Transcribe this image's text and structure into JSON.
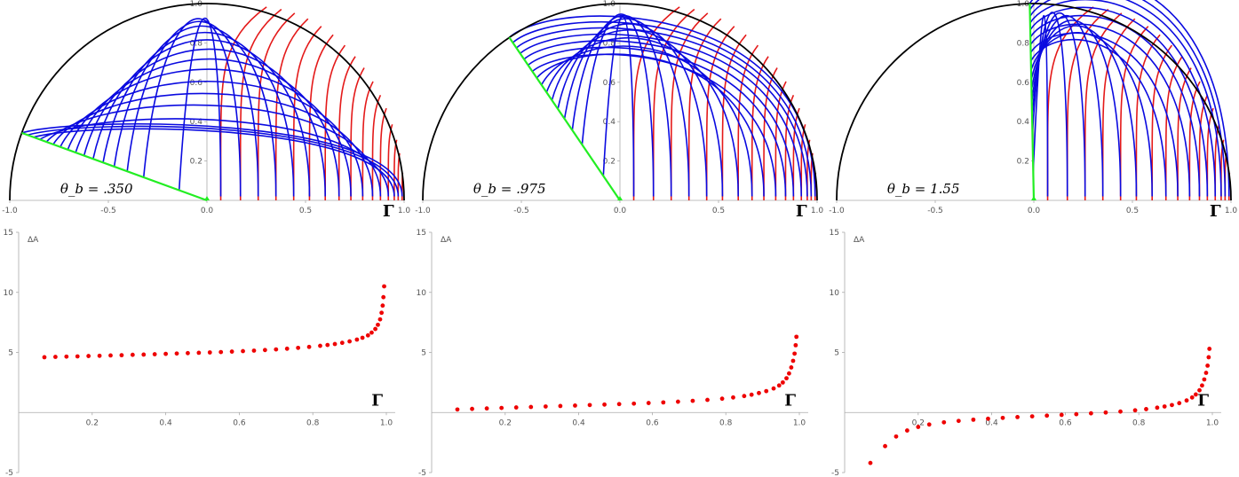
{
  "figure": {
    "panels": [
      "theta_b = .350",
      "theta_b = .975",
      "theta_b = 1.55"
    ]
  },
  "colors": {
    "boundary": "#000000",
    "rt_surfaces": "#0a0ae0",
    "entangling_curves": "#e41a1a",
    "brane_line": "#22ee22",
    "points": "#ee0000",
    "axis": "#aaaaaa",
    "tick_text": "#555555"
  },
  "chart_data": [
    {
      "type": "line",
      "title": "",
      "annotation": "θ_b = .350",
      "theta_b": 0.35,
      "xlabel": "Γ",
      "ylabel": "",
      "xlim": [
        -1.0,
        1.0
      ],
      "ylim": [
        0,
        1.0
      ],
      "x_ticks": [
        "-1.0",
        "-0.5",
        "0.0",
        "0.5",
        "1.0"
      ],
      "y_ticks": [
        "0.2",
        "0.4",
        "0.6",
        "0.8",
        "1.0"
      ],
      "gamma_values": [
        0.07,
        0.17,
        0.26,
        0.35,
        0.44,
        0.52,
        0.6,
        0.67,
        0.73,
        0.79,
        0.84,
        0.88,
        0.92,
        0.95,
        0.97,
        0.99
      ],
      "series": [
        {
          "name": "RT surfaces",
          "color": "blue"
        },
        {
          "name": "Γ curves",
          "color": "red"
        },
        {
          "name": "brane",
          "color": "green"
        }
      ]
    },
    {
      "type": "line",
      "title": "",
      "annotation": "θ_b = .975",
      "theta_b": 0.975,
      "xlabel": "Γ",
      "ylabel": "",
      "xlim": [
        -1.0,
        1.0
      ],
      "ylim": [
        0,
        1.0
      ],
      "x_ticks": [
        "-1.0",
        "-0.5",
        "0.0",
        "0.5",
        "1.0"
      ],
      "y_ticks": [
        "0.2",
        "0.4",
        "0.6",
        "0.8",
        "1.0"
      ],
      "gamma_values": [
        0.07,
        0.17,
        0.26,
        0.35,
        0.44,
        0.52,
        0.6,
        0.67,
        0.73,
        0.79,
        0.84,
        0.88,
        0.92,
        0.95,
        0.97,
        0.99
      ],
      "series": [
        {
          "name": "RT surfaces",
          "color": "blue"
        },
        {
          "name": "Γ curves",
          "color": "red"
        },
        {
          "name": "brane",
          "color": "green"
        }
      ]
    },
    {
      "type": "line",
      "title": "",
      "annotation": "θ_b = 1.55",
      "theta_b": 1.55,
      "xlabel": "Γ",
      "ylabel": "",
      "xlim": [
        -1.0,
        1.0
      ],
      "ylim": [
        0,
        1.0
      ],
      "x_ticks": [
        "-1.0",
        "-0.5",
        "0.0",
        "0.5",
        "1.0"
      ],
      "y_ticks": [
        "0.2",
        "0.4",
        "0.6",
        "0.8",
        "1.0"
      ],
      "gamma_values": [
        0.07,
        0.17,
        0.26,
        0.35,
        0.44,
        0.52,
        0.6,
        0.67,
        0.73,
        0.79,
        0.84,
        0.88,
        0.92,
        0.95,
        0.97,
        0.99
      ],
      "series": [
        {
          "name": "RT surfaces",
          "color": "blue"
        },
        {
          "name": "Γ curves",
          "color": "red"
        },
        {
          "name": "brane",
          "color": "green"
        }
      ]
    },
    {
      "type": "scatter",
      "title": "",
      "xlabel": "Γ",
      "ylabel": "ΔA",
      "xlim": [
        0,
        1.0
      ],
      "ylim": [
        -5,
        15
      ],
      "x_ticks": [
        "0.2",
        "0.4",
        "0.6",
        "0.8",
        "1.0"
      ],
      "y_ticks": [
        "-5",
        "5",
        "10",
        "15"
      ],
      "series": [
        {
          "name": "ΔA",
          "points": [
            [
              0.07,
              4.6
            ],
            [
              0.1,
              4.63
            ],
            [
              0.13,
              4.65
            ],
            [
              0.16,
              4.67
            ],
            [
              0.19,
              4.7
            ],
            [
              0.22,
              4.72
            ],
            [
              0.25,
              4.75
            ],
            [
              0.28,
              4.77
            ],
            [
              0.31,
              4.8
            ],
            [
              0.34,
              4.82
            ],
            [
              0.37,
              4.85
            ],
            [
              0.4,
              4.88
            ],
            [
              0.43,
              4.91
            ],
            [
              0.46,
              4.94
            ],
            [
              0.49,
              4.97
            ],
            [
              0.52,
              5.0
            ],
            [
              0.55,
              5.03
            ],
            [
              0.58,
              5.07
            ],
            [
              0.61,
              5.11
            ],
            [
              0.64,
              5.15
            ],
            [
              0.67,
              5.2
            ],
            [
              0.7,
              5.25
            ],
            [
              0.73,
              5.31
            ],
            [
              0.76,
              5.38
            ],
            [
              0.79,
              5.46
            ],
            [
              0.82,
              5.55
            ],
            [
              0.84,
              5.62
            ],
            [
              0.86,
              5.7
            ],
            [
              0.88,
              5.8
            ],
            [
              0.9,
              5.92
            ],
            [
              0.92,
              6.07
            ],
            [
              0.935,
              6.22
            ],
            [
              0.95,
              6.42
            ],
            [
              0.96,
              6.65
            ],
            [
              0.97,
              6.95
            ],
            [
              0.977,
              7.3
            ],
            [
              0.983,
              7.75
            ],
            [
              0.987,
              8.3
            ],
            [
              0.99,
              8.9
            ],
            [
              0.992,
              9.6
            ],
            [
              0.994,
              10.5
            ]
          ]
        }
      ]
    },
    {
      "type": "scatter",
      "title": "",
      "xlabel": "Γ",
      "ylabel": "ΔA",
      "xlim": [
        0,
        1.0
      ],
      "ylim": [
        -5,
        15
      ],
      "x_ticks": [
        "0.2",
        "0.4",
        "0.6",
        "0.8",
        "1.0"
      ],
      "y_ticks": [
        "-5",
        "5",
        "10",
        "15"
      ],
      "series": [
        {
          "name": "ΔA",
          "points": [
            [
              0.07,
              0.25
            ],
            [
              0.11,
              0.3
            ],
            [
              0.15,
              0.34
            ],
            [
              0.19,
              0.38
            ],
            [
              0.23,
              0.42
            ],
            [
              0.27,
              0.46
            ],
            [
              0.31,
              0.5
            ],
            [
              0.35,
              0.54
            ],
            [
              0.39,
              0.58
            ],
            [
              0.43,
              0.62
            ],
            [
              0.47,
              0.66
            ],
            [
              0.51,
              0.7
            ],
            [
              0.55,
              0.74
            ],
            [
              0.59,
              0.79
            ],
            [
              0.63,
              0.84
            ],
            [
              0.67,
              0.9
            ],
            [
              0.71,
              0.97
            ],
            [
              0.75,
              1.05
            ],
            [
              0.79,
              1.15
            ],
            [
              0.82,
              1.25
            ],
            [
              0.85,
              1.37
            ],
            [
              0.87,
              1.48
            ],
            [
              0.89,
              1.62
            ],
            [
              0.91,
              1.78
            ],
            [
              0.93,
              2.0
            ],
            [
              0.945,
              2.25
            ],
            [
              0.955,
              2.5
            ],
            [
              0.965,
              2.85
            ],
            [
              0.972,
              3.25
            ],
            [
              0.978,
              3.75
            ],
            [
              0.983,
              4.3
            ],
            [
              0.987,
              4.9
            ],
            [
              0.99,
              5.6
            ],
            [
              0.992,
              6.3
            ]
          ]
        }
      ]
    },
    {
      "type": "scatter",
      "title": "",
      "xlabel": "Γ",
      "ylabel": "ΔA",
      "xlim": [
        0,
        1.0
      ],
      "ylim": [
        -5,
        15
      ],
      "x_ticks": [
        "0.2",
        "0.4",
        "0.6",
        "0.8",
        "1.0"
      ],
      "y_ticks": [
        "-5",
        "5",
        "10",
        "15"
      ],
      "series": [
        {
          "name": "ΔA",
          "points": [
            [
              0.07,
              -4.2
            ],
            [
              0.11,
              -2.8
            ],
            [
              0.14,
              -2.0
            ],
            [
              0.17,
              -1.5
            ],
            [
              0.2,
              -1.2
            ],
            [
              0.23,
              -1.0
            ],
            [
              0.27,
              -0.82
            ],
            [
              0.31,
              -0.7
            ],
            [
              0.35,
              -0.6
            ],
            [
              0.39,
              -0.52
            ],
            [
              0.43,
              -0.45
            ],
            [
              0.47,
              -0.38
            ],
            [
              0.51,
              -0.32
            ],
            [
              0.55,
              -0.26
            ],
            [
              0.59,
              -0.2
            ],
            [
              0.63,
              -0.14
            ],
            [
              0.67,
              -0.07
            ],
            [
              0.71,
              0.0
            ],
            [
              0.75,
              0.08
            ],
            [
              0.79,
              0.18
            ],
            [
              0.82,
              0.28
            ],
            [
              0.85,
              0.4
            ],
            [
              0.87,
              0.5
            ],
            [
              0.89,
              0.62
            ],
            [
              0.91,
              0.78
            ],
            [
              0.93,
              1.0
            ],
            [
              0.945,
              1.25
            ],
            [
              0.955,
              1.5
            ],
            [
              0.965,
              1.85
            ],
            [
              0.972,
              2.25
            ],
            [
              0.978,
              2.75
            ],
            [
              0.983,
              3.3
            ],
            [
              0.987,
              3.9
            ],
            [
              0.99,
              4.6
            ],
            [
              0.992,
              5.3
            ]
          ]
        }
      ]
    }
  ]
}
